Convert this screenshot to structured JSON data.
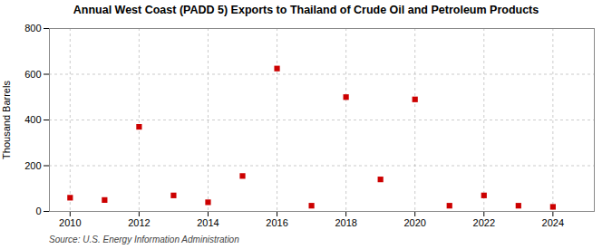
{
  "chart_data": {
    "type": "scatter",
    "title": "Annual West Coast (PADD 5) Exports to Thailand of Crude Oil and Petroleum Products",
    "ylabel": "Thousand Barrels",
    "annotations": [
      "Source: U.S. Energy Information Administration"
    ],
    "x": [
      2010,
      2011,
      2012,
      2013,
      2014,
      2015,
      2016,
      2017,
      2018,
      2019,
      2020,
      2021,
      2022,
      2023,
      2024
    ],
    "values": [
      60,
      50,
      370,
      70,
      40,
      155,
      625,
      25,
      500,
      140,
      490,
      25,
      70,
      25,
      20
    ],
    "color": "#cc0000",
    "marker": "square",
    "xlim": [
      2009.4,
      2025.2
    ],
    "xticks": [
      2010,
      2012,
      2014,
      2016,
      2018,
      2020,
      2022,
      2024
    ],
    "ylim": [
      0,
      800
    ],
    "yticks": [
      0,
      200,
      400,
      600,
      800
    ],
    "grid": true
  }
}
